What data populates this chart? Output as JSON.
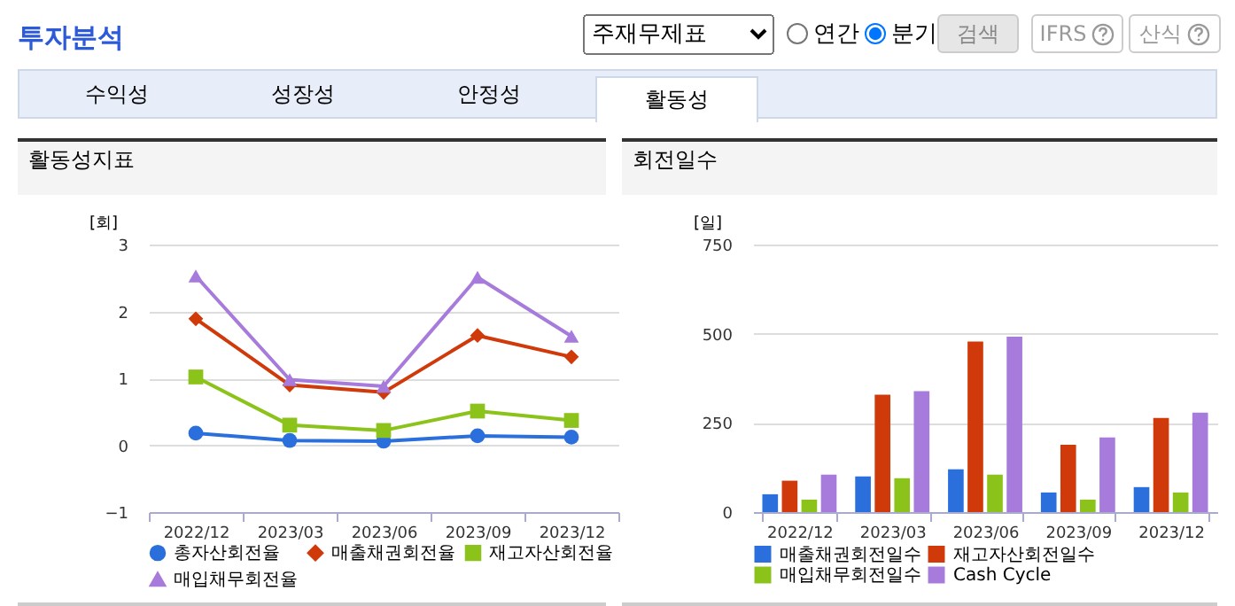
{
  "chart_data": [
    {
      "type": "other",
      "title": "투자분석",
      "annotations": [
        "주재무제표",
        "연간",
        "분기",
        "검색",
        "IFRS",
        "산식",
        "수익성",
        "성장성",
        "안정성",
        "활동성"
      ]
    },
    {
      "type": "line",
      "title": "활동성지표",
      "ylabel": "[회]",
      "categories": [
        "2022/12",
        "2023/03",
        "2023/06",
        "2023/09",
        "2023/12"
      ],
      "ylim": [
        -1,
        3
      ],
      "yticks": [
        -1,
        0,
        1,
        2,
        3
      ],
      "grid": "y",
      "legend": "bottom",
      "series": [
        {
          "name": "총자산회전율",
          "color": "#2a6fdb",
          "marker": "circle",
          "values": [
            0.18,
            0.07,
            0.06,
            0.14,
            0.12
          ]
        },
        {
          "name": "매출채권회전율",
          "color": "#d03a0b",
          "marker": "diamond",
          "values": [
            1.89,
            0.9,
            0.79,
            1.64,
            1.32
          ]
        },
        {
          "name": "재고자산회전율",
          "color": "#8cc31a",
          "marker": "square",
          "values": [
            1.02,
            0.3,
            0.22,
            0.51,
            0.37
          ]
        },
        {
          "name": "매입채무회전율",
          "color": "#a77bdb",
          "marker": "triangle",
          "values": [
            2.53,
            0.98,
            0.88,
            2.51,
            1.63
          ]
        }
      ]
    },
    {
      "type": "bar",
      "title": "회전일수",
      "ylabel": "[일]",
      "categories": [
        "2022/12",
        "2023/03",
        "2023/06",
        "2023/09",
        "2023/12"
      ],
      "ylim": [
        0,
        750
      ],
      "yticks": [
        0,
        250,
        500,
        750
      ],
      "grid": "y",
      "legend": "bottom",
      "series": [
        {
          "name": "매출채권회전일수",
          "color": "#2a6fdb",
          "values": [
            50,
            100,
            120,
            55,
            70
          ]
        },
        {
          "name": "재고자산회전일수",
          "color": "#d03a0b",
          "values": [
            88,
            329,
            478,
            189,
            264
          ]
        },
        {
          "name": "매입채무회전일수",
          "color": "#8cc31a",
          "values": [
            35,
            95,
            105,
            35,
            55
          ]
        },
        {
          "name": "Cash Cycle",
          "color": "#a77bdb",
          "values": [
            105,
            339,
            492,
            209,
            279
          ]
        }
      ]
    }
  ]
}
